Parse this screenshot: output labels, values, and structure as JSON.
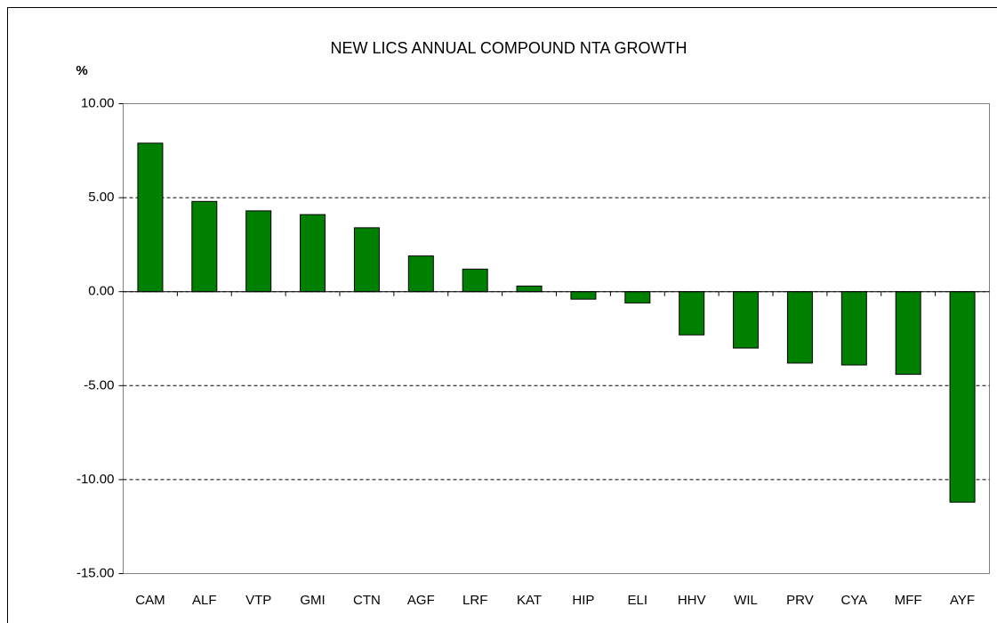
{
  "chart_data": {
    "type": "bar",
    "title": "NEW LICS ANNUAL COMPOUND NTA GROWTH",
    "y_label": "%",
    "categories": [
      "CAM",
      "ALF",
      "VTP",
      "GMI",
      "CTN",
      "AGF",
      "LRF",
      "KAT",
      "HIP",
      "ELI",
      "HHV",
      "WIL",
      "PRV",
      "CYA",
      "MFF",
      "AYF"
    ],
    "values": [
      7.9,
      4.8,
      4.3,
      4.1,
      3.4,
      1.9,
      1.2,
      0.3,
      -0.4,
      -0.6,
      -2.3,
      -3.0,
      -3.8,
      -3.9,
      -4.4,
      -11.2
    ],
    "color": "#008000",
    "ylim": [
      -15,
      10
    ],
    "yticks": [
      {
        "value": -15,
        "label": "-15.00"
      },
      {
        "value": -10,
        "label": "-10.00"
      },
      {
        "value": -5,
        "label": "-5.00"
      },
      {
        "value": 0,
        "label": "0.00"
      },
      {
        "value": 5,
        "label": "5.00"
      },
      {
        "value": 10,
        "label": "10.00"
      }
    ],
    "grid": true
  }
}
